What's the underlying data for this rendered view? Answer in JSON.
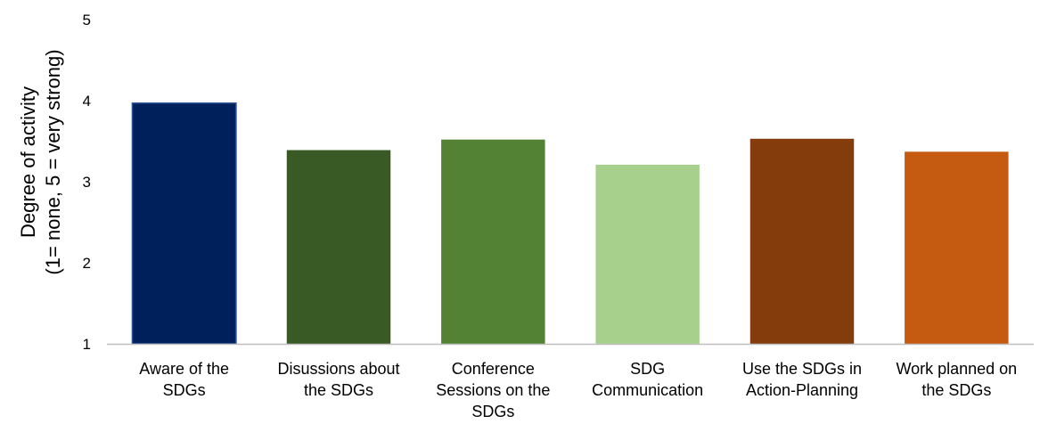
{
  "chart_data": {
    "type": "bar",
    "title": "",
    "xlabel": "",
    "ylabel_lines": [
      "Degree of activity",
      "(1= none, 5 = very strong)"
    ],
    "ylim": [
      1,
      5
    ],
    "yticks": [
      1,
      2,
      3,
      4,
      5
    ],
    "grid": false,
    "legend": "none",
    "categories": [
      [
        "Aware of the",
        "SDGs"
      ],
      [
        "Disussions about",
        "the SDGs"
      ],
      [
        "Conference",
        "Sessions on the",
        "SDGs"
      ],
      [
        "SDG",
        "Communication"
      ],
      [
        "Use the SDGs in",
        "Action-Planning"
      ],
      [
        "Work planned on",
        "the SDGs"
      ]
    ],
    "values": [
      3.97,
      3.39,
      3.52,
      3.21,
      3.53,
      3.37
    ],
    "colors": [
      "#00205b",
      "#3a5a25",
      "#538234",
      "#a7d08c",
      "#843c0c",
      "#c55a11"
    ],
    "bar_outline": "#2f5597",
    "axis_color": "#bfbfbf"
  }
}
